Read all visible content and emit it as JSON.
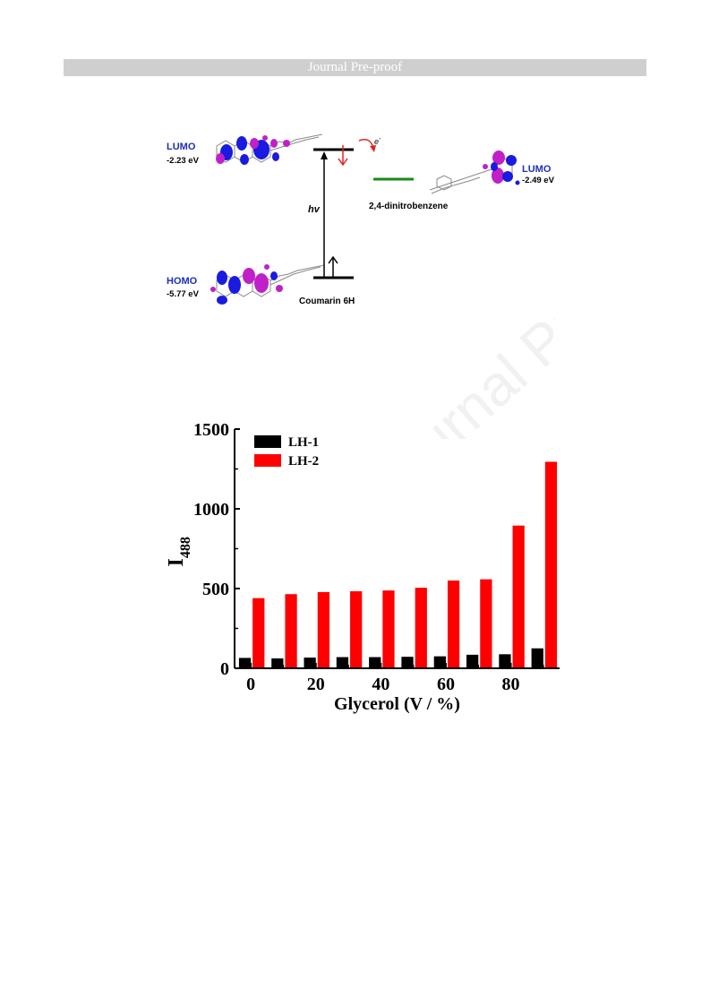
{
  "header": {
    "title": "Journal Pre-proof"
  },
  "watermark": {
    "text": "Journal Pre-proof"
  },
  "diagram": {
    "donor": {
      "lumo_label": "LUMO",
      "lumo_energy": "-2.23 eV",
      "homo_label": "HOMO",
      "homo_energy": "-5.77 eV",
      "name": "Coumarin 6H"
    },
    "acceptor": {
      "lumo_label": "LUMO",
      "lumo_energy": "-2.49 eV",
      "name": "2,4-dinitrobenzene"
    },
    "excitation_label": "hv",
    "electron_label": "e",
    "electron_sup": "-",
    "colors": {
      "label_blue": "#1f2fb8",
      "acceptor_line": "#1a8a1a",
      "arrow_red": "#e52222",
      "lobe_blue": "#1a1ae0",
      "lobe_magenta": "#c020c8"
    }
  },
  "chart_data": {
    "type": "bar",
    "x": [
      0,
      10,
      20,
      30,
      40,
      50,
      60,
      70,
      80,
      90
    ],
    "xticks": [
      "0",
      "20",
      "40",
      "60",
      "80"
    ],
    "xtick_values": [
      0,
      20,
      40,
      60,
      80
    ],
    "xlabel": "Glycerol (V / %)",
    "ylabel_main": "I",
    "ylabel_sub": "488",
    "yticks": [
      "0",
      "500",
      "1000",
      "1500"
    ],
    "ytick_values": [
      0,
      500,
      1000,
      1500
    ],
    "ylim": [
      0,
      1500
    ],
    "xlim": [
      -5,
      95
    ],
    "series": [
      {
        "name": "LH-1",
        "color": "#000000",
        "values": [
          65,
          62,
          67,
          70,
          70,
          72,
          75,
          85,
          88,
          125
        ]
      },
      {
        "name": "LH-2",
        "color": "#ff0000",
        "values": [
          440,
          465,
          478,
          483,
          488,
          505,
          550,
          558,
          895,
          1295
        ]
      }
    ],
    "legend_position": "top-left"
  }
}
